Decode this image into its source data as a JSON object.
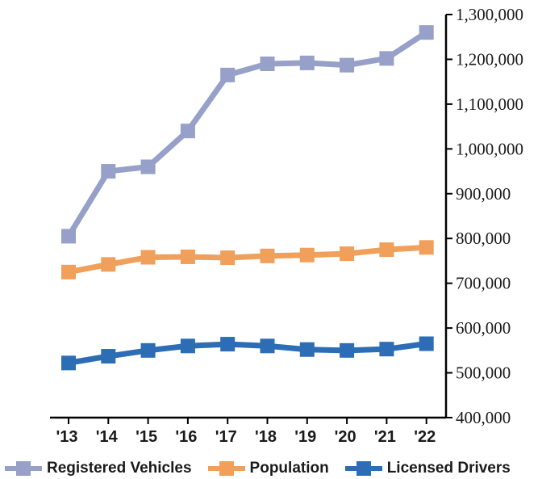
{
  "chart_data": {
    "type": "line",
    "categories": [
      "'13",
      "'14",
      "'15",
      "'16",
      "'17",
      "'18",
      "'19",
      "'20",
      "'21",
      "'22"
    ],
    "series": [
      {
        "name": "Registered Vehicles",
        "color": "#96a0c8",
        "values": [
          805000,
          950000,
          960000,
          1040000,
          1165000,
          1190000,
          1192000,
          1187000,
          1202000,
          1260000
        ]
      },
      {
        "name": "Population",
        "color": "#f0a05a",
        "values": [
          725000,
          742000,
          758000,
          759000,
          757000,
          761000,
          763000,
          766000,
          775000,
          780000
        ]
      },
      {
        "name": "Licensed Drivers",
        "color": "#2c6db5",
        "values": [
          522000,
          537000,
          550000,
          560000,
          564000,
          560000,
          552000,
          550000,
          553000,
          565000
        ]
      }
    ],
    "yticks": [
      "400,000",
      "500,000",
      "600,000",
      "700,000",
      "800,000",
      "900,000",
      "1,000,000",
      "1,100,000",
      "1,200,000",
      "1,300,000"
    ],
    "ylim": [
      400000,
      1300000
    ],
    "y_axis_side": "right",
    "grid": false,
    "legend_position": "bottom",
    "title": "",
    "xlabel": "",
    "ylabel": ""
  }
}
